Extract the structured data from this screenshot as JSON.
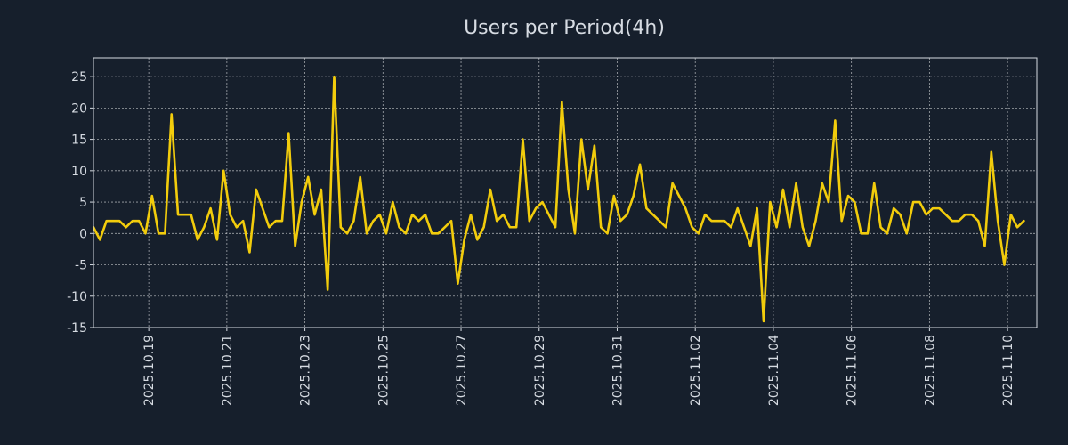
{
  "chart_data": {
    "type": "line",
    "title": "Users per Period(4h)",
    "xlabel": "",
    "ylabel": "",
    "ylim": [
      -15,
      28
    ],
    "yticks": [
      -15,
      -10,
      -5,
      0,
      5,
      10,
      15,
      20,
      25
    ],
    "ytick_labels": [
      "-15",
      "-10",
      "-5",
      "0",
      "5",
      "10",
      "15",
      "20",
      "25"
    ],
    "xrange": [
      -8.5,
      136.5
    ],
    "xticks": [
      {
        "index": 0,
        "label": "2025.10.19"
      },
      {
        "index": 12,
        "label": "2025.10.21"
      },
      {
        "index": 24,
        "label": "2025.10.23"
      },
      {
        "index": 36,
        "label": "2025.10.25"
      },
      {
        "index": 48,
        "label": "2025.10.27"
      },
      {
        "index": 60,
        "label": "2025.10.29"
      },
      {
        "index": 72,
        "label": "2025.10.31"
      },
      {
        "index": 84,
        "label": "2025.11.02"
      },
      {
        "index": 96,
        "label": "2025.11.04"
      },
      {
        "index": 108,
        "label": "2025.11.06"
      },
      {
        "index": 120,
        "label": "2025.11.08"
      },
      {
        "index": 132,
        "label": "2025.11.10"
      }
    ],
    "grid": true,
    "series": [
      {
        "name": "Users",
        "color": "#f2cc0c",
        "x_start": -8.5,
        "values": [
          1,
          -1,
          2,
          2,
          2,
          1,
          2,
          2,
          0,
          6,
          0,
          0,
          19,
          3,
          3,
          3,
          -1,
          1,
          4,
          -1,
          10,
          3,
          1,
          2,
          -3,
          7,
          4,
          1,
          2,
          2,
          16,
          -2,
          5,
          9,
          3,
          7,
          -9,
          25,
          1,
          0,
          2,
          9,
          0,
          2,
          3,
          0,
          5,
          1,
          0,
          3,
          2,
          3,
          0,
          0,
          1,
          2,
          -8,
          -1,
          3,
          -1,
          1,
          7,
          2,
          3,
          1,
          1,
          15,
          2,
          4,
          5,
          3,
          1,
          21,
          7,
          0,
          15,
          7,
          14,
          1,
          0,
          6,
          2,
          3,
          6,
          11,
          4,
          3,
          2,
          1,
          8,
          6,
          4,
          1,
          0,
          3,
          2,
          2,
          2,
          1,
          4,
          1,
          -2,
          4,
          -14,
          5,
          1,
          7,
          1,
          8,
          1,
          -2,
          2,
          8,
          5,
          18,
          2,
          6,
          5,
          0,
          0,
          8,
          1,
          0,
          4,
          3,
          0,
          5,
          5,
          3,
          4,
          4,
          3,
          2,
          2,
          3,
          3,
          2,
          -2,
          13,
          2,
          -5,
          3,
          1,
          2
        ]
      }
    ]
  }
}
